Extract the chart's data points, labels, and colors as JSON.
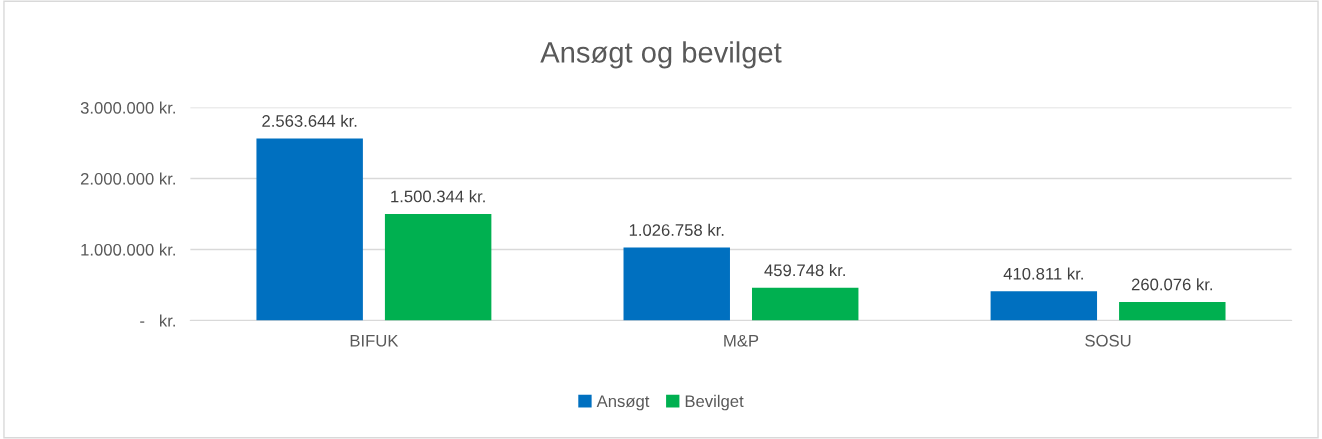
{
  "chart_data": {
    "type": "bar",
    "title": "Ansøgt og bevilget",
    "categories": [
      "BIFUK",
      "M&P",
      "SOSU"
    ],
    "series": [
      {
        "name": "Ansøgt",
        "color": "#0070c0",
        "values": [
          2563644,
          1026758,
          410811
        ],
        "value_labels": [
          "2.563.644 kr.",
          "1.026.758 kr.",
          "410.811 kr."
        ]
      },
      {
        "name": "Bevilget",
        "color": "#00b050",
        "values": [
          1500344,
          459748,
          260076
        ],
        "value_labels": [
          "1.500.344 kr.",
          "459.748 kr.",
          "260.076 kr."
        ]
      }
    ],
    "ylim": [
      0,
      3000000
    ],
    "yticks": [
      {
        "value": 0,
        "label": "-   kr."
      },
      {
        "value": 1000000,
        "label": "1.000.000 kr."
      },
      {
        "value": 2000000,
        "label": "2.000.000 kr."
      },
      {
        "value": 3000000,
        "label": "3.000.000 kr."
      }
    ],
    "grid": "y",
    "legend": "bottom"
  }
}
